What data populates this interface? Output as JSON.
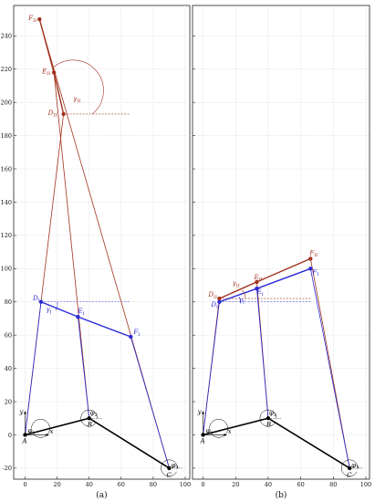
{
  "chart_data": [
    {
      "type": "line",
      "caption": "(a)",
      "xlim": [
        -2,
        100
      ],
      "ylim": [
        -25,
        255
      ],
      "x_ticks": [
        0,
        20,
        40,
        60,
        80,
        100
      ],
      "y_ticks": [
        -20,
        0,
        20,
        40,
        60,
        80,
        100,
        120,
        140,
        160,
        180,
        200,
        220,
        240
      ],
      "grid": true,
      "colors": {
        "mechanism": "#000000",
        "config_I": "#2a2ad6",
        "config_II": "#a0321e"
      },
      "points": {
        "A": [
          0,
          0
        ],
        "B": [
          40,
          10
        ],
        "C": [
          90,
          -20
        ],
        "D_I": [
          10,
          80
        ],
        "E_I": [
          33,
          71
        ],
        "F_I": [
          66,
          59
        ],
        "D_II": [
          24,
          193
        ],
        "E_II": [
          18,
          218
        ],
        "F_II": [
          9,
          250
        ]
      },
      "labels": {
        "A": "A",
        "B": "B",
        "C": "C",
        "D_I": "D",
        "D_I_sub": "I",
        "E_I": "E",
        "E_I_sub": "I",
        "F_I": "F",
        "F_I_sub": "I",
        "D_II": "D",
        "D_II_sub": "II",
        "E_II": "E",
        "E_II_sub": "II",
        "F_II": "F",
        "F_II_sub": "II",
        "gamma_I": "γ",
        "gamma_I_sub": "I",
        "gamma_II": "γ",
        "gamma_II_sub": "II",
        "phi1": "φ",
        "phi1_sub": "1",
        "phi2": "φ",
        "phi2_sub": "2",
        "phi3": "φ",
        "phi3_sub": "3",
        "axis_x": "x",
        "axis_y": "y"
      },
      "reference_lines_y": [
        80,
        193
      ]
    },
    {
      "type": "line",
      "caption": "(b)",
      "xlim": [
        -2,
        100
      ],
      "ylim": [
        -25,
        255
      ],
      "x_ticks": [
        0,
        20,
        40,
        60,
        80,
        100
      ],
      "y_ticks": [
        -20,
        0,
        20,
        40,
        60,
        80,
        100,
        120,
        140,
        160,
        180,
        200,
        220,
        240
      ],
      "grid": true,
      "colors": {
        "mechanism": "#000000",
        "config_I": "#2a2ad6",
        "config_II": "#a0321e"
      },
      "points": {
        "A": [
          0,
          0
        ],
        "B": [
          40,
          10
        ],
        "C": [
          90,
          -20
        ],
        "D_I": [
          10,
          80
        ],
        "E_I": [
          33,
          88
        ],
        "F_I": [
          66,
          100
        ],
        "D_II": [
          10,
          82
        ],
        "E_II": [
          33,
          92
        ],
        "F_II": [
          66,
          106
        ]
      },
      "labels": {
        "A": "A",
        "B": "B",
        "C": "C",
        "D_I": "D",
        "D_I_sub": "I",
        "E_I": "E",
        "E_I_sub": "I",
        "F_I": "F",
        "F_I_sub": "I",
        "D_II": "D",
        "D_II_sub": "II",
        "E_II": "E",
        "E_II_sub": "II",
        "F_II": "F",
        "F_II_sub": "II",
        "gamma_I": "γ",
        "gamma_I_sub": "I",
        "gamma_II": "γ",
        "gamma_II_sub": "II",
        "phi1": "φ",
        "phi1_sub": "1",
        "phi2": "φ",
        "phi2_sub": "2",
        "phi3": "φ",
        "phi3_sub": "3",
        "axis_x": "x",
        "axis_y": "y"
      },
      "reference_lines_y": [
        80,
        82
      ]
    }
  ]
}
